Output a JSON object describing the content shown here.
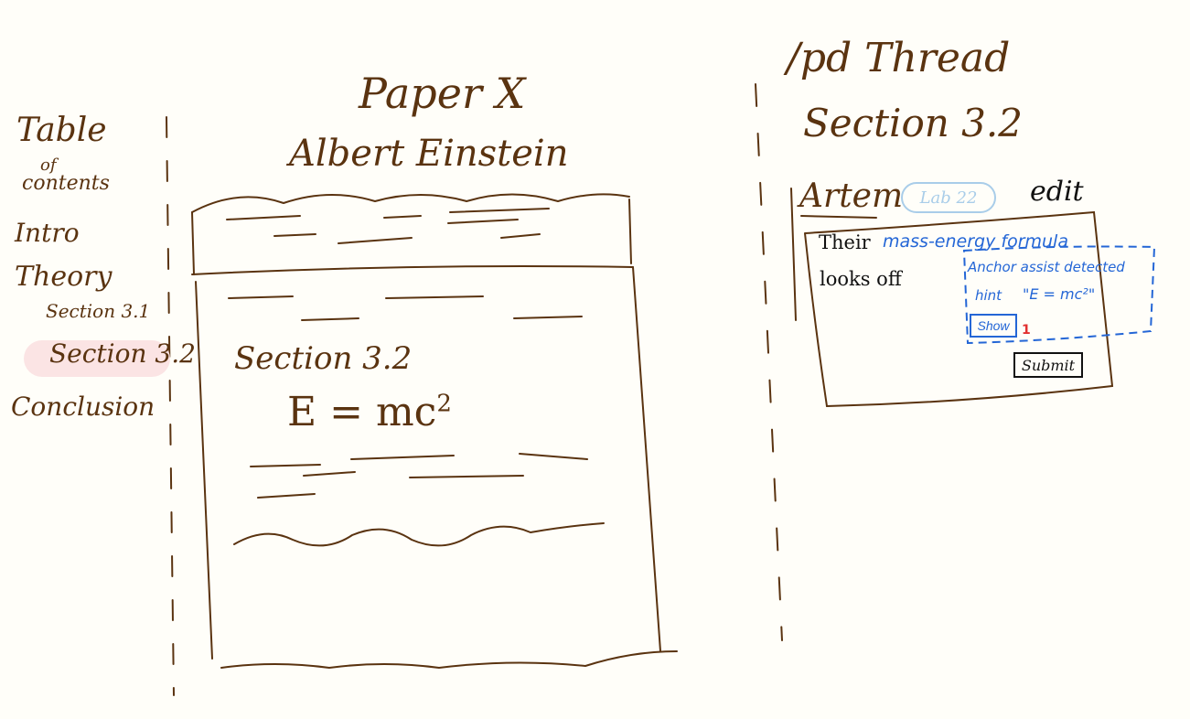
{
  "toc": {
    "title": "Table",
    "of": "of",
    "contents": "contents",
    "items": {
      "intro": "Intro",
      "theory": "Theory",
      "section_3_1": "Section 3.1",
      "section_3_2": "Section 3.2",
      "conclusion": "Conclusion"
    },
    "highlight_color": "#fbe4e4"
  },
  "paper": {
    "title": "Paper X",
    "author": "Albert Einstein",
    "section_heading": "Section 3.2",
    "equation": "E = mc",
    "equation_exponent": "2"
  },
  "thread": {
    "title": "/pd Thread",
    "section": "Section 3.2",
    "comment": {
      "author": "Artem",
      "badge": "Lab 22",
      "edit_label": "edit",
      "text_before": "Their",
      "highlight": "mass-energy formula",
      "text_after": "looks off",
      "submit_label": "Submit"
    },
    "hint": {
      "label": "Anchor assist detected",
      "word": "hint",
      "equation": "\"E = mc²\"",
      "show_label": "Show",
      "count": "1"
    }
  },
  "colors": {
    "ink": "#5a3310",
    "accent_blue": "#2466d6",
    "badge_blue": "#a9cde9",
    "count_red": "#e23030"
  }
}
